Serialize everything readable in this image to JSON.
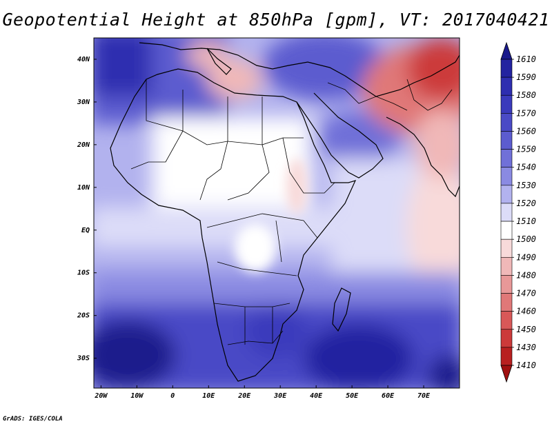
{
  "title": "Geopotential Height at 850hPa [gpm], VT: 2017040421",
  "credit": "GrADS: IGES/COLA",
  "axes": {
    "lat_labels": [
      "40N",
      "30N",
      "20N",
      "10N",
      "EQ",
      "10S",
      "20S",
      "30S"
    ],
    "lat_values": [
      40,
      30,
      20,
      10,
      0,
      -10,
      -20,
      -30
    ],
    "lon_labels": [
      "20W",
      "10W",
      "0",
      "10E",
      "20E",
      "30E",
      "40E",
      "50E",
      "60E",
      "70E"
    ],
    "lon_values": [
      -20,
      -10,
      0,
      10,
      20,
      30,
      40,
      50,
      60,
      70
    ],
    "lat_range": [
      -37,
      45
    ],
    "lon_range": [
      -22,
      80
    ]
  },
  "colorbar": {
    "labels": [
      "1610",
      "1590",
      "1580",
      "1570",
      "1560",
      "1550",
      "1540",
      "1530",
      "1520",
      "1510",
      "1500",
      "1490",
      "1480",
      "1470",
      "1460",
      "1450",
      "1430",
      "1410"
    ],
    "colors": [
      "#1a1a8c",
      "#2323a0",
      "#2e2eb0",
      "#3a3abc",
      "#4a4ac6",
      "#5c5ccf",
      "#7070d8",
      "#8a8ae2",
      "#b2b2ee",
      "#dcdcf8",
      "#ffffff",
      "#f8dada",
      "#f0b8b8",
      "#e89898",
      "#e07878",
      "#d85858",
      "#cc3a3a",
      "#b82020",
      "#a01010"
    ]
  },
  "field_colors": {
    "ocean_deep_blue": "#1a1a8c",
    "mid_blue": "#5c5ccf",
    "light_blue": "#b2b2ee",
    "pale": "#dcdcf8",
    "white": "#ffffff",
    "light_red": "#f0b8b8",
    "red": "#d85858",
    "dark_red": "#b82020"
  }
}
